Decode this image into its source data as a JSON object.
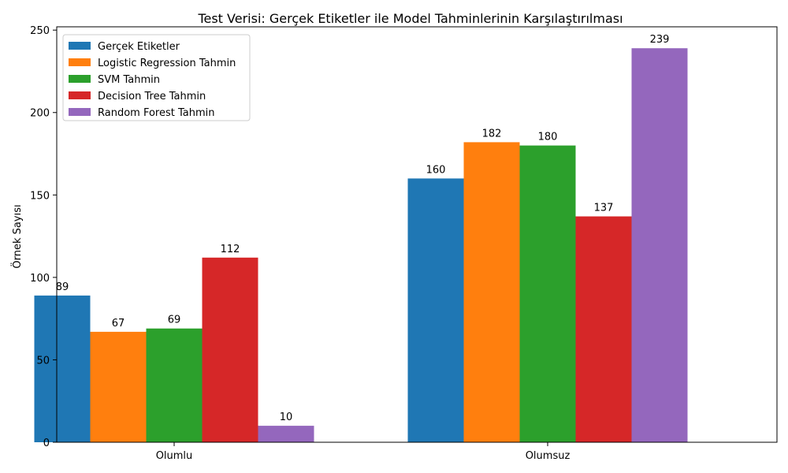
{
  "chart_data": {
    "type": "bar",
    "title": "Test Verisi: Gerçek Etiketler ile Model Tahminlerinin Karşılaştırılması",
    "xlabel": "",
    "ylabel": "Örnek Sayısı",
    "categories": [
      "Olumlu",
      "Olumsuz"
    ],
    "ylim": [
      0,
      252
    ],
    "yticks": [
      0,
      50,
      100,
      150,
      200,
      250
    ],
    "grid": false,
    "legend_position": "top-left",
    "series": [
      {
        "name": "Gerçek Etiketler",
        "color": "#1f77b4",
        "values": [
          89,
          160
        ]
      },
      {
        "name": "Logistic Regression Tahmin",
        "color": "#ff7f0e",
        "values": [
          67,
          182
        ]
      },
      {
        "name": "SVM Tahmin",
        "color": "#2ca02c",
        "values": [
          69,
          180
        ]
      },
      {
        "name": "Decision Tree Tahmin",
        "color": "#d62728",
        "values": [
          112,
          137
        ]
      },
      {
        "name": "Random Forest Tahmin",
        "color": "#9467bd",
        "values": [
          10,
          239
        ]
      }
    ]
  }
}
